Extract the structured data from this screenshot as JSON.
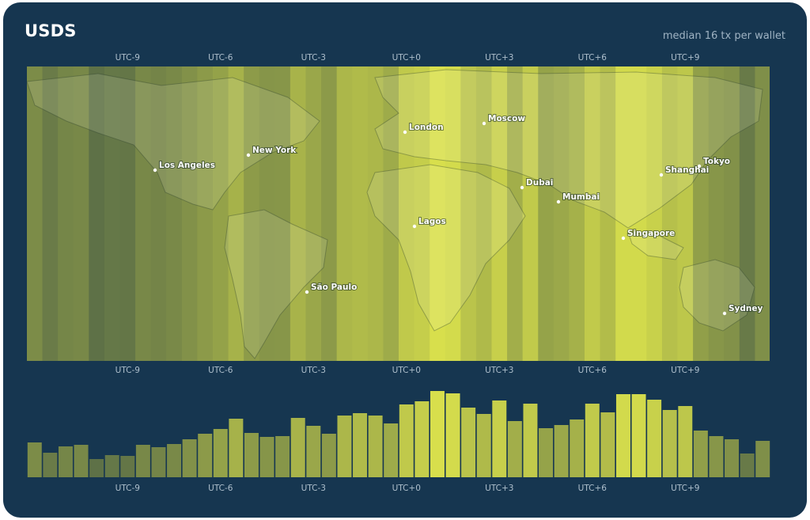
{
  "header": {
    "title": "USDS",
    "subtitle": "median 16 tx per wallet"
  },
  "colors": {
    "card_bg": "#163650",
    "low": "#3e5446",
    "high": "#d9e04c",
    "tick_text": "#aebfcc",
    "label_text": "#ffffff"
  },
  "chart_data": {
    "type": "bar",
    "title": "USDS",
    "subtitle": "median 16 tx per wallet",
    "x_ticks": [
      "UTC-9",
      "UTC-6",
      "UTC-3",
      "UTC+0",
      "UTC+3",
      "UTC+6",
      "UTC+9"
    ],
    "x_tick_offsets": [
      -9,
      -6,
      -3,
      0,
      3,
      6,
      9
    ],
    "x_range": [
      -12,
      11.5
    ],
    "offsets": [
      -12,
      -11.5,
      -11,
      -10.5,
      -10,
      -9.5,
      -9,
      -8.5,
      -8,
      -7.5,
      -7,
      -6.5,
      -6,
      -5.5,
      -5,
      -4.5,
      -4,
      -3.5,
      -3,
      -2.5,
      -2,
      -1.5,
      -1,
      -0.5,
      0,
      0.5,
      1,
      1.5,
      2,
      2.5,
      3,
      3.5,
      4,
      4.5,
      5,
      5.5,
      6,
      6.5,
      7,
      7.5,
      8,
      8.5,
      9,
      9.5,
      10,
      10.5,
      11,
      11.5
    ],
    "values": [
      44,
      31,
      39,
      41,
      23,
      28,
      27,
      41,
      38,
      42,
      48,
      55,
      61,
      74,
      56,
      51,
      52,
      75,
      65,
      55,
      78,
      81,
      78,
      68,
      92,
      96,
      109,
      106,
      88,
      80,
      97,
      71,
      93,
      62,
      66,
      73,
      93,
      82,
      105,
      105,
      98,
      85,
      90,
      59,
      52,
      48,
      30,
      46
    ],
    "ylim": [
      0,
      110
    ],
    "grid": false,
    "legend": "none"
  },
  "map": {
    "cities": [
      {
        "name": "Los Angeles"
      },
      {
        "name": "New York"
      },
      {
        "name": "London"
      },
      {
        "name": "Moscow"
      },
      {
        "name": "Dubai"
      },
      {
        "name": "Mumbai"
      },
      {
        "name": "Shanghai"
      },
      {
        "name": "Tokyo"
      },
      {
        "name": "Lagos"
      },
      {
        "name": "Singapore"
      },
      {
        "name": "São Paulo"
      },
      {
        "name": "Sydney"
      }
    ]
  }
}
